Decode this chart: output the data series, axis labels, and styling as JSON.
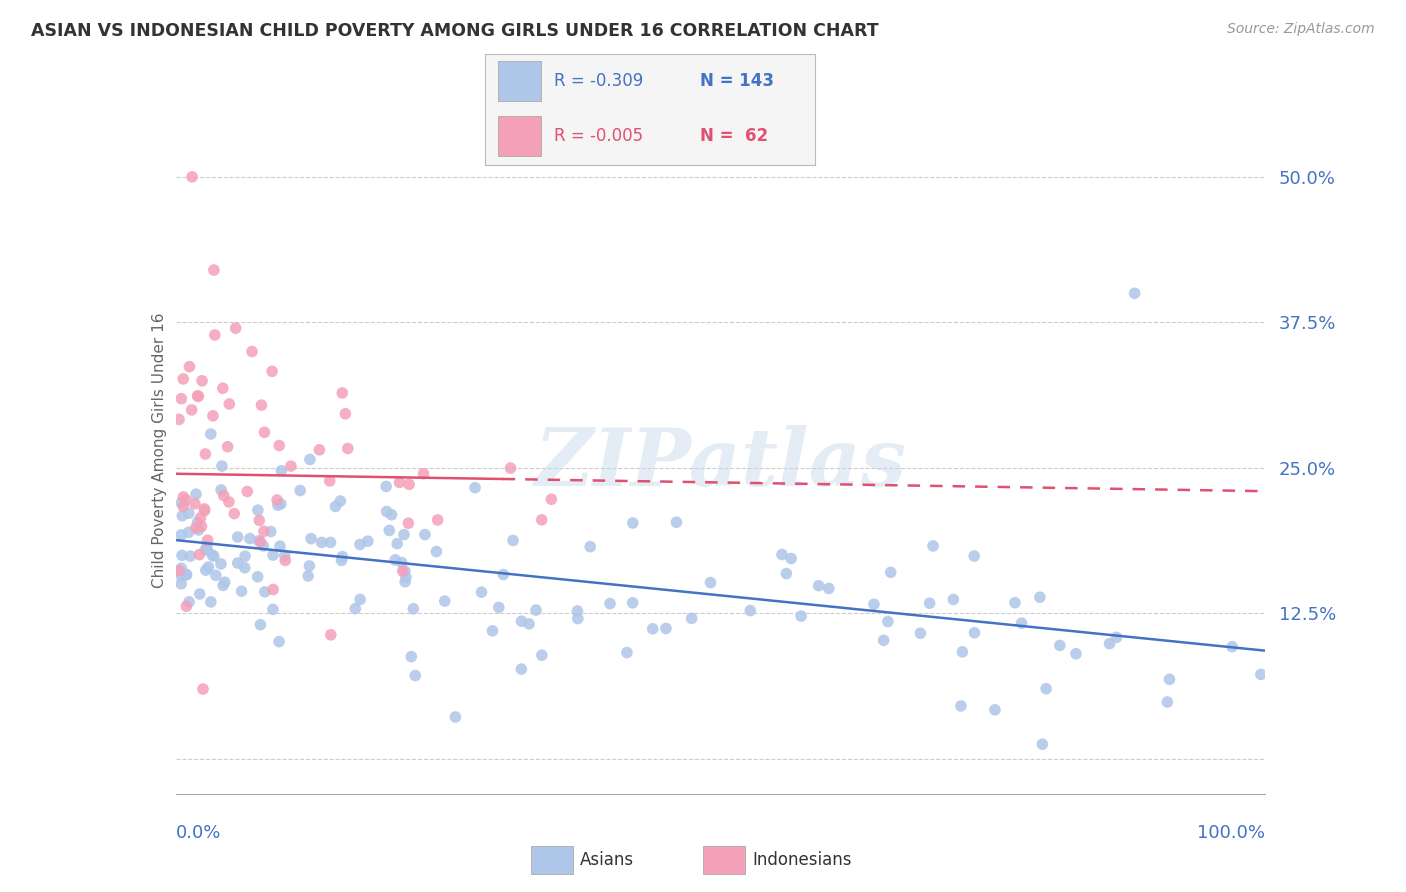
{
  "title": "ASIAN VS INDONESIAN CHILD POVERTY AMONG GIRLS UNDER 16 CORRELATION CHART",
  "source": "Source: ZipAtlas.com",
  "ylabel": "Child Poverty Among Girls Under 16",
  "yticks": [
    0.0,
    0.125,
    0.25,
    0.375,
    0.5
  ],
  "ytick_labels": [
    "",
    "12.5%",
    "25.0%",
    "37.5%",
    "50.0%"
  ],
  "xlim": [
    0,
    100
  ],
  "ylim": [
    -0.03,
    0.56
  ],
  "asian_color": "#aec6e8",
  "indonesian_color": "#f4a0b8",
  "asian_line_color": "#4472c4",
  "indonesian_line_color": "#e05070",
  "watermark_color": "#c5d8ec",
  "background_color": "#ffffff",
  "grid_color": "#cccccc",
  "legend_r1": "R = -0.309",
  "legend_n1": "N = 143",
  "legend_r2": "R = -0.005",
  "legend_n2": "N =  62",
  "legend_color_1": "#4472c4",
  "legend_color_2": "#e05070",
  "title_color": "#333333",
  "source_color": "#999999",
  "axis_label_color": "#4472c4",
  "ylabel_color": "#666666"
}
